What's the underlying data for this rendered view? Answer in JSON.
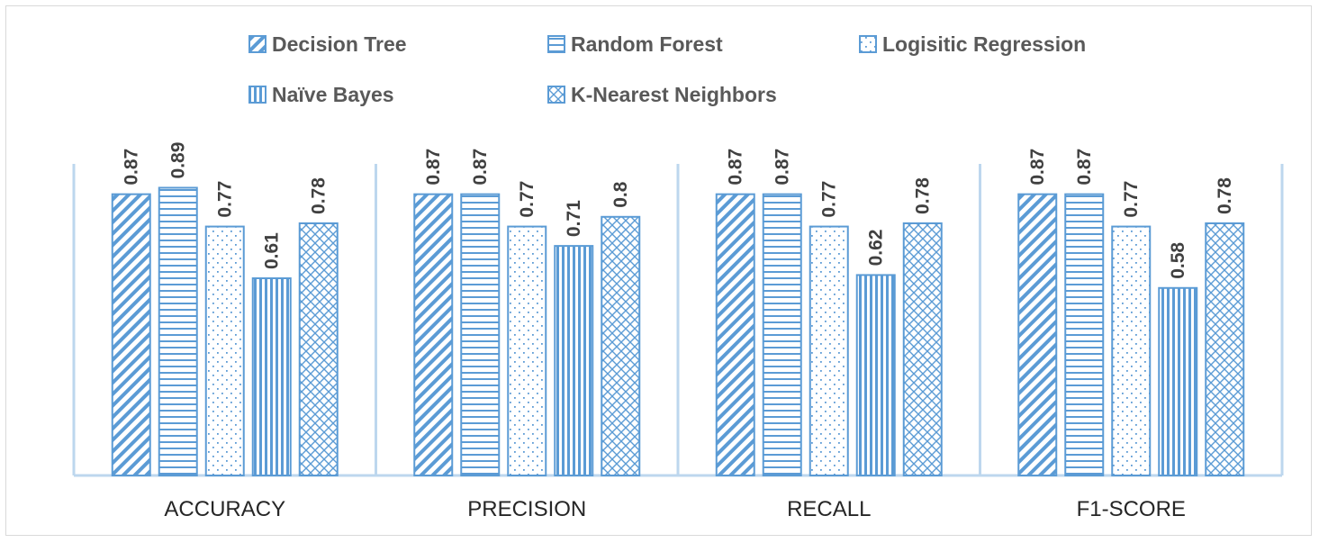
{
  "chart_data": {
    "type": "bar",
    "categories": [
      "ACCURACY",
      "PRECISION",
      "RECALL",
      "F1-SCORE"
    ],
    "series": [
      {
        "name": "Decision Tree",
        "pattern": "diagonal",
        "values": [
          0.87,
          0.87,
          0.87,
          0.87
        ]
      },
      {
        "name": "Random Forest",
        "pattern": "horizontal",
        "values": [
          0.89,
          0.87,
          0.87,
          0.87
        ]
      },
      {
        "name": "Logisitic Regression",
        "pattern": "dots",
        "values": [
          0.77,
          0.77,
          0.77,
          0.77
        ]
      },
      {
        "name": "Naïve Bayes",
        "pattern": "vertical",
        "values": [
          0.61,
          0.71,
          0.62,
          0.58
        ]
      },
      {
        "name": "K-Nearest Neighbors",
        "pattern": "crosshatch",
        "values": [
          0.78,
          0.8,
          0.78,
          0.78
        ]
      }
    ],
    "ylim": [
      0,
      1
    ],
    "grid": false,
    "legend": "top",
    "data_labels": true,
    "colors": {
      "bar": "#5b9bd5",
      "bar_fill": "#ffffff",
      "axis": "#bdd7ee",
      "label": "#404040"
    }
  }
}
